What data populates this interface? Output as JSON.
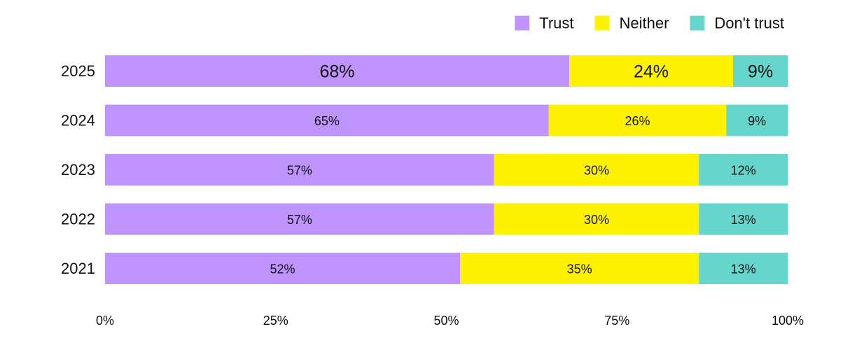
{
  "chart_data": {
    "type": "bar",
    "orientation": "horizontal",
    "stacked": true,
    "categories": [
      "2025",
      "2024",
      "2023",
      "2022",
      "2021"
    ],
    "series": [
      {
        "name": "Trust",
        "color": "#bf94ff",
        "values": [
          68,
          65,
          57,
          57,
          52
        ]
      },
      {
        "name": "Neither",
        "color": "#fff200",
        "values": [
          24,
          26,
          30,
          30,
          35
        ]
      },
      {
        "name": "Don't trust",
        "color": "#66d6cc",
        "values": [
          9,
          9,
          12,
          13,
          13
        ]
      }
    ],
    "xlim": [
      0,
      100
    ],
    "x_ticks": [
      "0%",
      "25%",
      "50%",
      "75%",
      "100%"
    ],
    "value_suffix": "%",
    "legend_position": "top-right",
    "grid": false,
    "title": "",
    "xlabel": "",
    "ylabel": ""
  }
}
